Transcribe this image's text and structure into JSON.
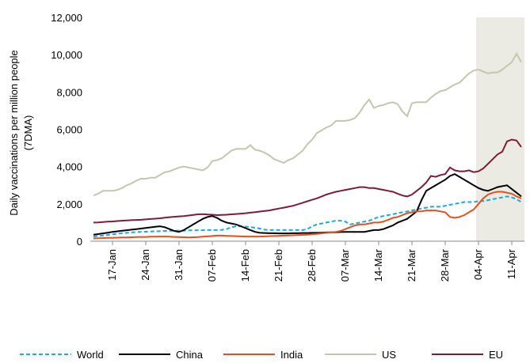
{
  "chart_data": {
    "type": "line",
    "ylabel": [
      "Daily vaccinations per million people",
      "(7DMA)"
    ],
    "categories": [
      null,
      null,
      null,
      null,
      "17-Jan",
      null,
      null,
      null,
      null,
      null,
      null,
      "24-Jan",
      null,
      null,
      null,
      null,
      null,
      null,
      "31-Jan",
      null,
      null,
      null,
      null,
      null,
      null,
      "07-Feb",
      null,
      null,
      null,
      null,
      null,
      null,
      "14-Feb",
      null,
      null,
      null,
      null,
      null,
      null,
      "21-Feb",
      null,
      null,
      null,
      null,
      null,
      null,
      "28-Feb",
      null,
      null,
      null,
      null,
      null,
      null,
      "07-Mar",
      null,
      null,
      null,
      null,
      null,
      null,
      "14-Mar",
      null,
      null,
      null,
      null,
      null,
      null,
      "21-Mar",
      null,
      null,
      null,
      null,
      null,
      null,
      "28-Mar",
      null,
      null,
      null,
      null,
      null,
      null,
      "04-Apr",
      null,
      null,
      null,
      null,
      null,
      null,
      "11-Apr",
      null,
      null
    ],
    "series": [
      {
        "name": "World",
        "color": "#1ba9e0",
        "dash": true,
        "values": [
          250,
          280,
          310,
          340,
          370,
          400,
          430,
          450,
          470,
          490,
          500,
          510,
          520,
          530,
          540,
          550,
          560,
          560,
          570,
          570,
          580,
          580,
          590,
          590,
          600,
          600,
          600,
          610,
          650,
          750,
          800,
          800,
          780,
          760,
          720,
          680,
          620,
          600,
          600,
          600,
          600,
          600,
          600,
          600,
          600,
          650,
          800,
          900,
          950,
          1000,
          1050,
          1100,
          1100,
          1050,
          900,
          950,
          1000,
          1050,
          1100,
          1200,
          1300,
          1350,
          1400,
          1450,
          1500,
          1550,
          1600,
          1650,
          1700,
          1750,
          1800,
          1850,
          1850,
          1850,
          1900,
          1950,
          2000,
          2050,
          2100,
          2100,
          2100,
          2150,
          2150,
          2200,
          2250,
          2300,
          2350,
          2400,
          2350,
          2250,
          2100
        ]
      },
      {
        "name": "China",
        "color": "#000000",
        "values": [
          350,
          380,
          420,
          460,
          500,
          530,
          560,
          590,
          620,
          650,
          680,
          710,
          740,
          770,
          800,
          750,
          650,
          550,
          500,
          600,
          750,
          900,
          1050,
          1200,
          1300,
          1350,
          1250,
          1100,
          1000,
          950,
          900,
          800,
          700,
          600,
          500,
          450,
          440,
          430,
          430,
          420,
          420,
          420,
          430,
          430,
          440,
          440,
          450,
          450,
          460,
          470,
          480,
          480,
          490,
          500,
          500,
          500,
          500,
          500,
          550,
          600,
          600,
          650,
          750,
          850,
          1000,
          1100,
          1200,
          1400,
          1600,
          2200,
          2700,
          2850,
          3000,
          3150,
          3300,
          3500,
          3600,
          3450,
          3300,
          3150,
          3000,
          2850,
          2750,
          2700,
          2800,
          2900,
          2950,
          3000,
          2800,
          2600,
          2400
        ]
      },
      {
        "name": "India",
        "color": "#e2501f",
        "values": [
          150,
          160,
          170,
          180,
          180,
          190,
          200,
          200,
          210,
          220,
          230,
          230,
          240,
          240,
          250,
          250,
          240,
          230,
          220,
          210,
          200,
          210,
          220,
          240,
          260,
          280,
          300,
          300,
          290,
          280,
          270,
          260,
          250,
          250,
          250,
          250,
          260,
          270,
          280,
          290,
          300,
          310,
          320,
          330,
          340,
          350,
          370,
          390,
          420,
          450,
          480,
          500,
          550,
          650,
          750,
          850,
          900,
          900,
          950,
          1000,
          1000,
          1050,
          1150,
          1250,
          1300,
          1400,
          1500,
          1550,
          1600,
          1600,
          1650,
          1650,
          1650,
          1600,
          1550,
          1300,
          1250,
          1300,
          1400,
          1550,
          1700,
          2000,
          2300,
          2500,
          2600,
          2650,
          2650,
          2600,
          2550,
          2400,
          2300
        ]
      },
      {
        "name": "US",
        "color": "#c3c6b0",
        "values": [
          2450,
          2550,
          2700,
          2700,
          2700,
          2750,
          2850,
          3000,
          3100,
          3250,
          3350,
          3350,
          3400,
          3400,
          3550,
          3700,
          3750,
          3850,
          3950,
          4000,
          3950,
          3900,
          3850,
          3800,
          3950,
          4300,
          4350,
          4450,
          4650,
          4850,
          4950,
          4950,
          4950,
          5150,
          4900,
          4850,
          4750,
          4600,
          4400,
          4300,
          4200,
          4350,
          4450,
          4650,
          4850,
          5200,
          5450,
          5800,
          5950,
          6100,
          6200,
          6450,
          6450,
          6450,
          6500,
          6600,
          6900,
          7300,
          7600,
          7150,
          7250,
          7300,
          7400,
          7450,
          7350,
          6950,
          6700,
          7400,
          7450,
          7450,
          7450,
          7700,
          7900,
          8050,
          8100,
          8250,
          8400,
          8500,
          8750,
          9000,
          9150,
          9200,
          9100,
          9000,
          9050,
          9050,
          9200,
          9400,
          9600,
          10050,
          9600
        ]
      },
      {
        "name": "EU",
        "color": "#7b1e35",
        "values": [
          1000,
          1010,
          1030,
          1050,
          1060,
          1080,
          1100,
          1110,
          1130,
          1140,
          1150,
          1170,
          1190,
          1210,
          1230,
          1260,
          1290,
          1310,
          1330,
          1350,
          1380,
          1410,
          1440,
          1450,
          1430,
          1420,
          1400,
          1410,
          1420,
          1440,
          1460,
          1480,
          1500,
          1530,
          1560,
          1590,
          1620,
          1650,
          1700,
          1750,
          1800,
          1850,
          1900,
          1980,
          2060,
          2140,
          2220,
          2300,
          2400,
          2500,
          2580,
          2650,
          2700,
          2750,
          2800,
          2850,
          2900,
          2900,
          2850,
          2850,
          2800,
          2750,
          2700,
          2650,
          2550,
          2450,
          2400,
          2500,
          2700,
          2900,
          3150,
          3500,
          3450,
          3550,
          3600,
          3950,
          3800,
          3750,
          3750,
          3800,
          3700,
          3750,
          3900,
          4150,
          4400,
          4650,
          4800,
          5350,
          5450,
          5400,
          5050
        ]
      }
    ],
    "ylim": [
      0,
      12000
    ],
    "yticks": [
      0,
      {
        "value": 2000,
        "label": "2,000"
      },
      {
        "value": 4000,
        "label": "4,000"
      },
      {
        "value": 6000,
        "label": "6,000"
      },
      {
        "value": 8000,
        "label": "8,000"
      },
      {
        "value": 10000,
        "label": "10,000"
      },
      {
        "value": 12000,
        "label": "12,000"
      }
    ],
    "shade": {
      "start": 81,
      "color": "#ebebe3"
    },
    "grid": false,
    "legend": "bottom"
  }
}
